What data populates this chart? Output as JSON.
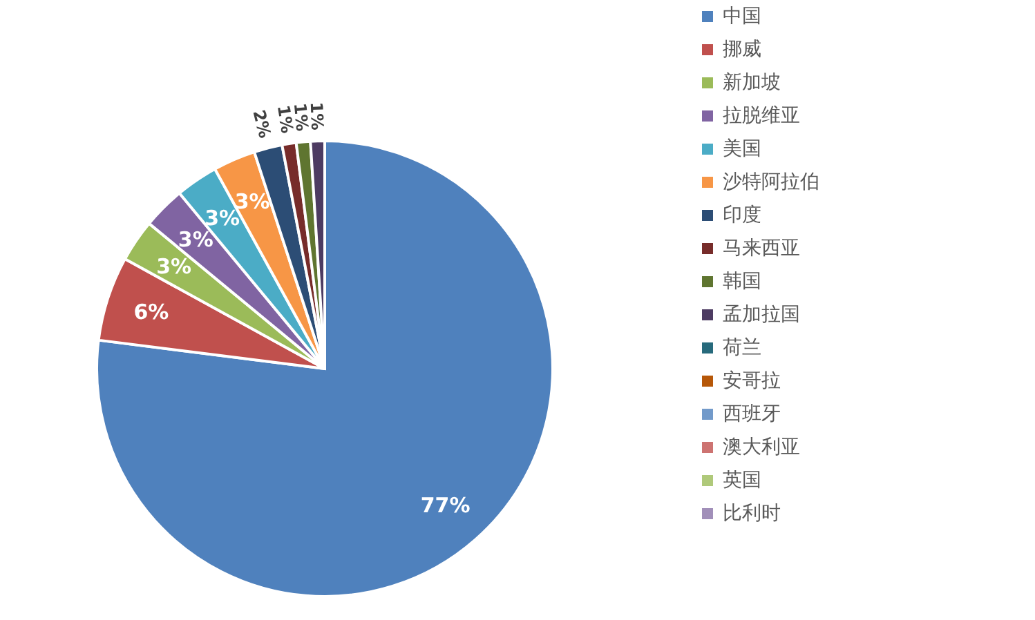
{
  "chart_data": {
    "type": "pie",
    "categories": [
      "中国",
      "挪威",
      "新加坡",
      "拉脱维亚",
      "美国",
      "沙特阿拉伯",
      "印度",
      "马来西亚",
      "韩国",
      "孟加拉国",
      "荷兰",
      "安哥拉",
      "西班牙",
      "澳大利亚",
      "英国",
      "比利时"
    ],
    "values": [
      77,
      6,
      3,
      3,
      3,
      3,
      2,
      1,
      1,
      1,
      0,
      0,
      0,
      0,
      0,
      0
    ],
    "value_labels": [
      "77%",
      "6%",
      "3%",
      "3%",
      "3%",
      "3%",
      "2%",
      "1%",
      "1%",
      "1%",
      null,
      null,
      null,
      null,
      null,
      null
    ],
    "colors": [
      "#4f81bd",
      "#c0504d",
      "#9bbb59",
      "#8064a2",
      "#4bacc6",
      "#f79646",
      "#2c4d75",
      "#772c2a",
      "#5f7530",
      "#4d3b62",
      "#276a7c",
      "#b65708",
      "#729aca",
      "#cd7371",
      "#afc97a",
      "#a18fb9"
    ],
    "legend": "right"
  }
}
